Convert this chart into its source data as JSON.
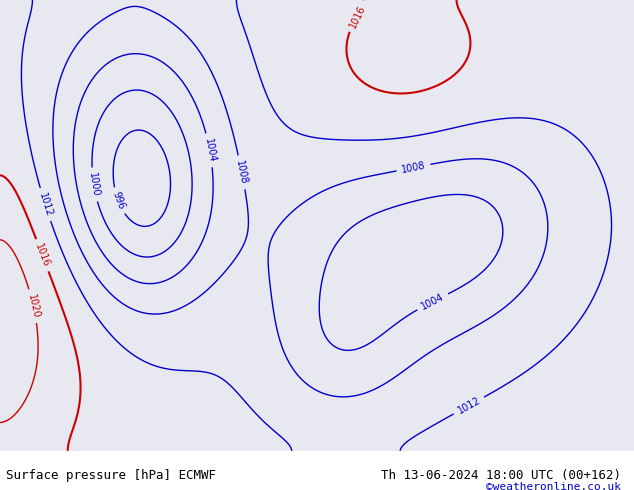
{
  "title_left": "Surface pressure [hPa] ECMWF",
  "title_right": "Th 13-06-2024 18:00 UTC (00+162)",
  "credit": "©weatheronline.co.uk",
  "bg_ocean": "#e8e8f0",
  "bg_land_europe": "#b8d8a0",
  "bg_land_other": "#c8e8b0",
  "contour_low_color": "#0000cc",
  "contour_mid_color": "#000000",
  "contour_high_color": "#cc0000",
  "label_fontsize": 7,
  "title_fontsize": 9,
  "credit_fontsize": 8,
  "figsize": [
    6.34,
    4.9
  ],
  "dpi": 100
}
